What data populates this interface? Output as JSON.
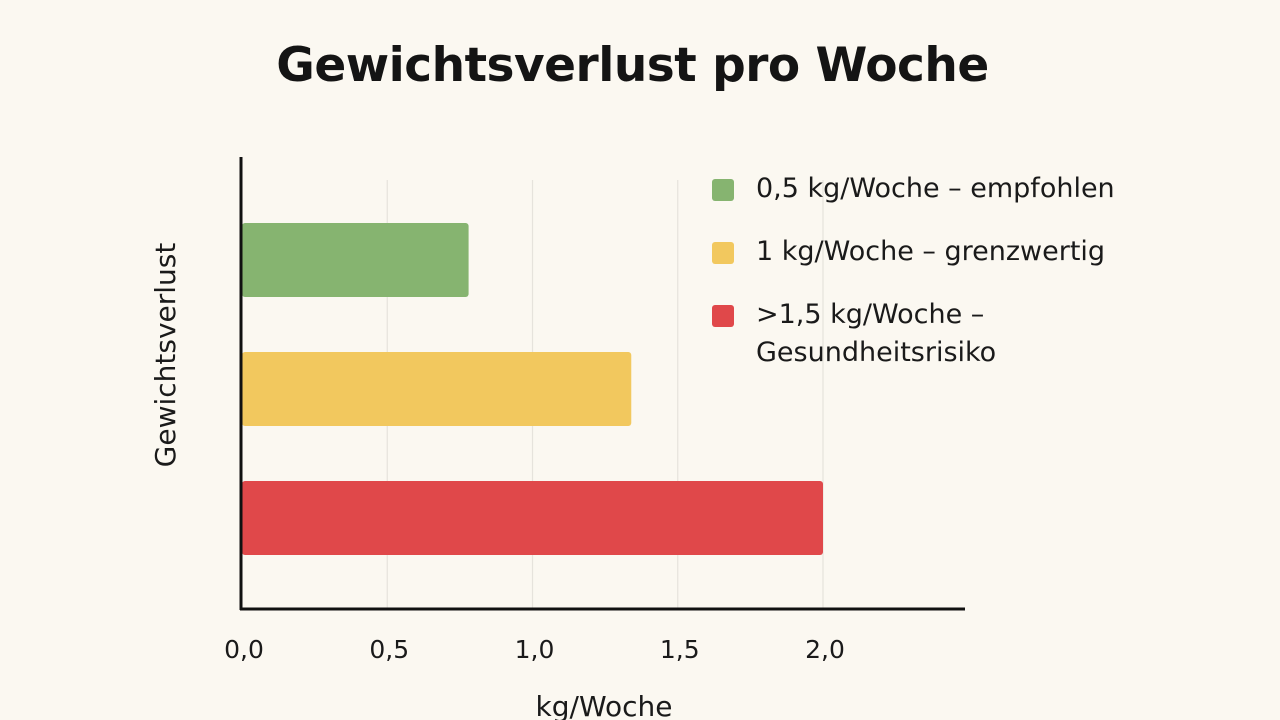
{
  "chart_data": {
    "type": "bar",
    "orientation": "horizontal",
    "title": "Gewichtsverlust pro Woche",
    "xlabel": "kg/Woche",
    "ylabel": "Gewichtsverlust",
    "xlim": [
      0,
      2.5
    ],
    "xticks": [
      0,
      0.5,
      1.0,
      1.5,
      2.0
    ],
    "xtick_labels": [
      "0,0",
      "0,5",
      "1,0",
      "1,5",
      "2,0"
    ],
    "grid": "vertical",
    "legend_position": "top-right",
    "series": [
      {
        "name": "0,5 kg/Woche – empfohlen",
        "value": 0.78,
        "color": "#86b470"
      },
      {
        "name": "1 kg/Woche – grenzwertig",
        "value": 1.34,
        "color": "#f2c85e"
      },
      {
        "name": ">1,5 kg/Woche – Gesundheitsrisiko",
        "value": 2.0,
        "color": "#e0484a"
      }
    ]
  }
}
